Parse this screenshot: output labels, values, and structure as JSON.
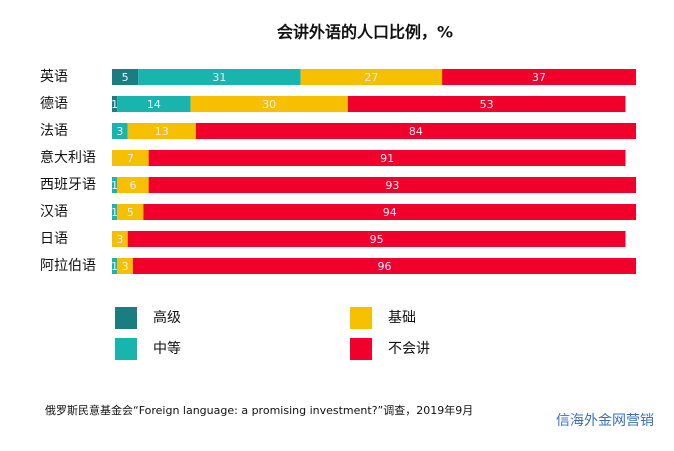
{
  "chart_data": {
    "type": "stacked-bar-horizontal",
    "title": "会讲外语的人口比例，%",
    "categories": [
      "英语",
      "德语",
      "法语",
      "意大利语",
      "西班牙语",
      "汉语",
      "日语",
      "阿拉伯语"
    ],
    "series": [
      {
        "name": "高级",
        "color": "#1a7d80",
        "values": [
          5,
          1,
          null,
          null,
          null,
          null,
          null,
          null
        ]
      },
      {
        "name": "中等",
        "color": "#18b5ae",
        "values": [
          31,
          14,
          3,
          null,
          1,
          1,
          null,
          1
        ]
      },
      {
        "name": "基础",
        "color": "#f6bf00",
        "values": [
          27,
          30,
          13,
          7,
          6,
          5,
          3,
          3
        ]
      },
      {
        "name": "不会讲",
        "color": "#f0002b",
        "values": [
          37,
          53,
          84,
          91,
          93,
          94,
          95,
          96
        ]
      }
    ],
    "xlim": [
      0,
      100
    ],
    "source": "俄罗斯民意基金会“Foreign language: a promising investment?”调查，2019年9月",
    "watermark": "信海外金网营销"
  }
}
